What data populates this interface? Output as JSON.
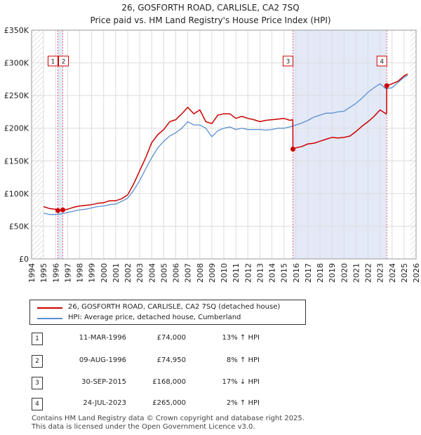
{
  "chart_data": {
    "type": "line",
    "title": "26, GOSFORTH ROAD, CARLISLE, CA2 7SQ",
    "subtitle": "Price paid vs. HM Land Registry's House Price Index (HPI)",
    "xlim": [
      1994,
      2026
    ],
    "ylim": [
      0,
      350000
    ],
    "x_ticks": [
      "1994",
      "1995",
      "1996",
      "1997",
      "1998",
      "1999",
      "2000",
      "2001",
      "2002",
      "2003",
      "2004",
      "2005",
      "2006",
      "2007",
      "2008",
      "2009",
      "2010",
      "2011",
      "2012",
      "2013",
      "2014",
      "2015",
      "2016",
      "2017",
      "2018",
      "2019",
      "2020",
      "2021",
      "2022",
      "2023",
      "2024",
      "2025",
      "2026"
    ],
    "y_ticks": [
      {
        "value": 0,
        "label": "£0"
      },
      {
        "value": 50000,
        "label": "£50K"
      },
      {
        "value": 100000,
        "label": "£100K"
      },
      {
        "value": 150000,
        "label": "£150K"
      },
      {
        "value": 200000,
        "label": "£200K"
      },
      {
        "value": 250000,
        "label": "£250K"
      },
      {
        "value": 300000,
        "label": "£300K"
      },
      {
        "value": 350000,
        "label": "£350K"
      }
    ],
    "grid": true,
    "shaded_regions": [
      {
        "x0": 1996.19,
        "x1": 1996.6
      },
      {
        "x0": 2015.75,
        "x1": 2023.56
      }
    ],
    "hatched_regions": [
      {
        "x0": 1994,
        "x1": 1995.0
      },
      {
        "x0": 2025.5,
        "x1": 2026
      }
    ],
    "series": [
      {
        "name": "26, GOSFORTH ROAD, CARLISLE, CA2 7SQ (detached house)",
        "color": "#cc0000",
        "x": [
          1995.0,
          1995.5,
          1996.0,
          1996.19,
          1996.6,
          1997.0,
          1997.5,
          1998.0,
          1998.5,
          1999.0,
          1999.5,
          2000.0,
          2000.5,
          2001.0,
          2001.5,
          2002.0,
          2002.5,
          2003.0,
          2003.5,
          2004.0,
          2004.5,
          2005.0,
          2005.5,
          2006.0,
          2006.5,
          2007.0,
          2007.5,
          2008.0,
          2008.5,
          2009.0,
          2009.5,
          2010.0,
          2010.5,
          2011.0,
          2011.5,
          2012.0,
          2012.5,
          2013.0,
          2013.5,
          2014.0,
          2014.5,
          2015.0,
          2015.5,
          2015.74,
          2015.75,
          2016.0,
          2016.5,
          2017.0,
          2017.5,
          2018.0,
          2018.5,
          2019.0,
          2019.5,
          2020.0,
          2020.5,
          2021.0,
          2021.5,
          2022.0,
          2022.5,
          2023.0,
          2023.5,
          2023.55,
          2023.56,
          2024.0,
          2024.5,
          2025.0,
          2025.3
        ],
        "values": [
          80000,
          77000,
          76000,
          74000,
          74950,
          76000,
          79000,
          81000,
          82000,
          83000,
          85000,
          86000,
          89000,
          89000,
          92000,
          98000,
          115000,
          135000,
          155000,
          178000,
          190000,
          198000,
          210000,
          213000,
          222000,
          232000,
          222000,
          228000,
          210000,
          207000,
          220000,
          222000,
          222000,
          215000,
          218000,
          215000,
          213000,
          210000,
          212000,
          213000,
          214000,
          215000,
          212000,
          213000,
          168000,
          170000,
          172000,
          176000,
          177000,
          180000,
          183000,
          186000,
          185000,
          186000,
          188000,
          195000,
          203000,
          210000,
          218000,
          228000,
          222000,
          223000,
          265000,
          268000,
          272000,
          280000,
          283000
        ]
      },
      {
        "name": "HPI: Average price, detached house, Cumberland",
        "color": "#5b8fd0",
        "x": [
          1995.0,
          1995.5,
          1996.0,
          1996.5,
          1997.0,
          1997.5,
          1998.0,
          1998.5,
          1999.0,
          1999.5,
          2000.0,
          2000.5,
          2001.0,
          2001.5,
          2002.0,
          2002.5,
          2003.0,
          2003.5,
          2004.0,
          2004.5,
          2005.0,
          2005.5,
          2006.0,
          2006.5,
          2007.0,
          2007.5,
          2008.0,
          2008.5,
          2009.0,
          2009.5,
          2010.0,
          2010.5,
          2011.0,
          2011.5,
          2012.0,
          2012.5,
          2013.0,
          2013.5,
          2014.0,
          2014.5,
          2015.0,
          2015.5,
          2016.0,
          2016.5,
          2017.0,
          2017.5,
          2018.0,
          2018.5,
          2019.0,
          2019.5,
          2020.0,
          2020.5,
          2021.0,
          2021.5,
          2022.0,
          2022.5,
          2023.0,
          2023.5,
          2024.0,
          2024.5,
          2025.0,
          2025.3
        ],
        "values": [
          70000,
          68000,
          68000,
          69000,
          71000,
          73000,
          75000,
          76000,
          78000,
          80000,
          81000,
          83000,
          84000,
          88000,
          93000,
          105000,
          120000,
          138000,
          155000,
          170000,
          180000,
          188000,
          193000,
          200000,
          210000,
          205000,
          205000,
          200000,
          187000,
          196000,
          200000,
          202000,
          198000,
          200000,
          198000,
          198000,
          198000,
          197000,
          198000,
          200000,
          200000,
          202000,
          205000,
          208000,
          212000,
          217000,
          220000,
          223000,
          223000,
          225000,
          226000,
          232000,
          238000,
          246000,
          255000,
          262000,
          268000,
          260000,
          262000,
          270000,
          278000,
          281000
        ]
      }
    ],
    "markers": [
      {
        "label": "1",
        "x": 1996.19,
        "y": 74000
      },
      {
        "label": "2",
        "x": 1996.6,
        "y": 74950
      },
      {
        "label": "3",
        "x": 2015.75,
        "y": 168000
      },
      {
        "label": "4",
        "x": 2023.56,
        "y": 265000
      }
    ]
  },
  "legend": {
    "property_label": "26, GOSFORTH ROAD, CARLISLE, CA2 7SQ (detached house)",
    "hpi_label": "HPI: Average price, detached house, Cumberland"
  },
  "sales": [
    {
      "num": "1",
      "date": "11-MAR-1996",
      "price": "£74,000",
      "hpi": "13% ↑ HPI"
    },
    {
      "num": "2",
      "date": "09-AUG-1996",
      "price": "£74,950",
      "hpi": "8% ↑ HPI"
    },
    {
      "num": "3",
      "date": "30-SEP-2015",
      "price": "£168,000",
      "hpi": "17% ↓ HPI"
    },
    {
      "num": "4",
      "date": "24-JUL-2023",
      "price": "£265,000",
      "hpi": "2% ↑ HPI"
    }
  ],
  "footer": {
    "line1": "Contains HM Land Registry data © Crown copyright and database right 2025.",
    "line2": "This data is licensed under the Open Government Licence v3.0."
  }
}
